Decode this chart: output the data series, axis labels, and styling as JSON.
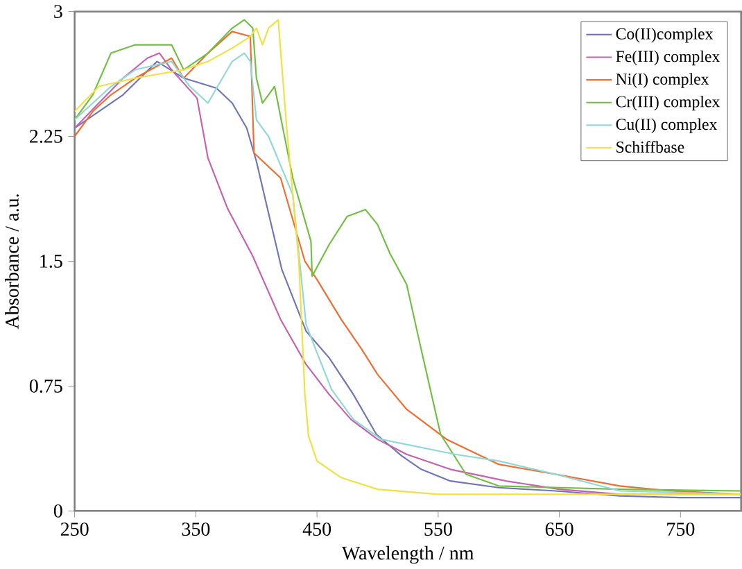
{
  "chart_data": {
    "type": "line",
    "xlabel": "Wavelength / nm",
    "ylabel": "Absorbance / a.u.",
    "xlim": [
      250,
      800
    ],
    "ylim": [
      0,
      3
    ],
    "xticks": [
      250,
      350,
      450,
      550,
      650,
      750
    ],
    "yticks": [
      0,
      0.75,
      1.5,
      2.25,
      3
    ],
    "grid": false,
    "legend": "top right",
    "series": [
      {
        "name": "Co(II)complex",
        "color": "#7074b8",
        "x": [
          250,
          270,
          290,
          318,
          340,
          367,
          380,
          392,
          400,
          409,
          421,
          441,
          460,
          480,
          499,
          520,
          536,
          560,
          600,
          647,
          700,
          750,
          800
        ],
        "values": [
          2.3,
          2.4,
          2.5,
          2.7,
          2.6,
          2.54,
          2.45,
          2.3,
          2.1,
          1.82,
          1.45,
          1.08,
          0.92,
          0.7,
          0.46,
          0.33,
          0.25,
          0.18,
          0.14,
          0.12,
          0.09,
          0.08,
          0.08
        ]
      },
      {
        "name": "Fe(III) complex",
        "color": "#c860b0",
        "x": [
          250,
          270,
          290,
          310,
          320,
          330,
          351,
          360,
          376,
          397,
          420,
          441,
          460,
          478,
          500,
          524,
          560,
          606,
          650,
          700,
          800
        ],
        "values": [
          2.3,
          2.45,
          2.6,
          2.72,
          2.75,
          2.65,
          2.48,
          2.12,
          1.82,
          1.53,
          1.15,
          0.88,
          0.7,
          0.55,
          0.43,
          0.34,
          0.25,
          0.18,
          0.13,
          0.1,
          0.1
        ]
      },
      {
        "name": "Ni(I) complex",
        "color": "#f26c30",
        "x": [
          250,
          265,
          280,
          300,
          330,
          340,
          360,
          380,
          395,
          398,
          420,
          440,
          450,
          470,
          487,
          500,
          524,
          557,
          600,
          647,
          700,
          742,
          800
        ],
        "values": [
          2.25,
          2.4,
          2.5,
          2.6,
          2.72,
          2.6,
          2.75,
          2.88,
          2.85,
          2.15,
          2.0,
          1.5,
          1.39,
          1.15,
          0.97,
          0.82,
          0.61,
          0.43,
          0.28,
          0.22,
          0.15,
          0.12,
          0.1
        ]
      },
      {
        "name": "Cr(III) complex",
        "color": "#70c040",
        "x": [
          250,
          265,
          280,
          300,
          330,
          340,
          360,
          380,
          390,
          397,
          400,
          405,
          415,
          430,
          445,
          446,
          460,
          475,
          490,
          500,
          510,
          524,
          536,
          552,
          573,
          600,
          700,
          800
        ],
        "values": [
          2.35,
          2.5,
          2.75,
          2.8,
          2.8,
          2.65,
          2.75,
          2.9,
          2.95,
          2.9,
          2.6,
          2.45,
          2.55,
          2.0,
          1.62,
          1.41,
          1.6,
          1.77,
          1.81,
          1.72,
          1.55,
          1.36,
          0.97,
          0.46,
          0.22,
          0.15,
          0.13,
          0.12
        ]
      },
      {
        "name": "Cu(II) complex",
        "color": "#90d8d8",
        "x": [
          250,
          280,
          300,
          330,
          345,
          360,
          380,
          390,
          395,
          400,
          410,
          430,
          441,
          450,
          462,
          480,
          503,
          564,
          600,
          647,
          700,
          800
        ],
        "values": [
          2.35,
          2.55,
          2.65,
          2.7,
          2.55,
          2.45,
          2.7,
          2.75,
          2.7,
          2.35,
          2.25,
          1.9,
          1.12,
          0.95,
          0.73,
          0.55,
          0.43,
          0.34,
          0.3,
          0.22,
          0.12,
          0.1
        ]
      },
      {
        "name": "Schiffbase",
        "color": "#f0e040",
        "x": [
          250,
          270,
          300,
          340,
          360,
          380,
          395,
          400,
          405,
          410,
          418,
          425,
          435,
          440,
          443,
          450,
          470,
          500,
          550,
          650,
          800
        ],
        "values": [
          2.4,
          2.55,
          2.6,
          2.65,
          2.7,
          2.78,
          2.85,
          2.9,
          2.8,
          2.9,
          2.95,
          2.3,
          1.5,
          0.7,
          0.45,
          0.3,
          0.2,
          0.13,
          0.1,
          0.1,
          0.1
        ]
      }
    ]
  }
}
